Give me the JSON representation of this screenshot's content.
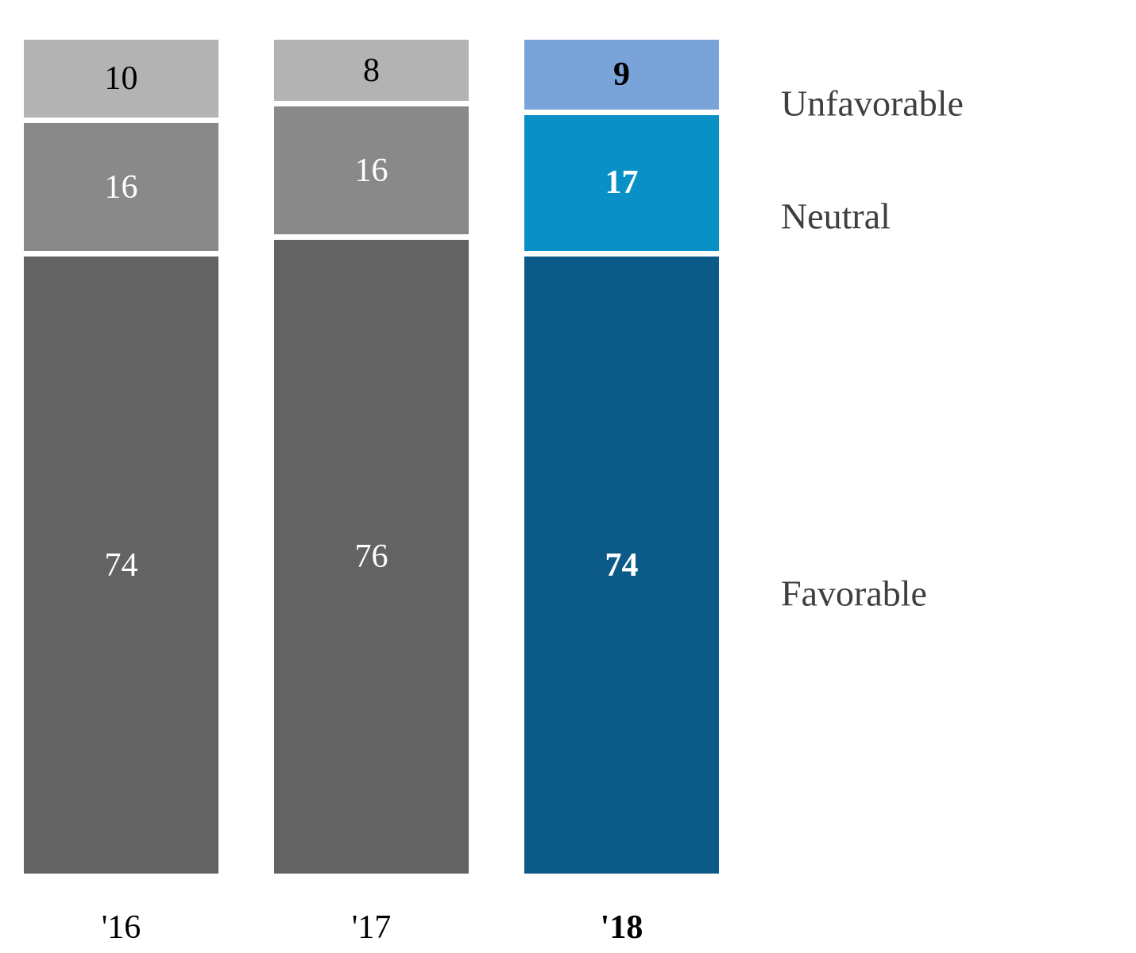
{
  "chart_data": {
    "type": "bar",
    "subtype": "100-percent-stacked-column",
    "categories": [
      "'16",
      "'17",
      "'18"
    ],
    "highlight_category": "'18",
    "segments_top_to_bottom": [
      "Unfavorable",
      "Neutral",
      "Favorable"
    ],
    "series": [
      {
        "name": "Unfavorable",
        "values": [
          10,
          8,
          9
        ]
      },
      {
        "name": "Neutral",
        "values": [
          16,
          16,
          17
        ]
      },
      {
        "name": "Favorable",
        "values": [
          74,
          76,
          74
        ]
      }
    ],
    "legend_labels": [
      "Unfavorable",
      "Neutral",
      "Favorable"
    ],
    "legend_position": "right",
    "data_labels_shown": true,
    "ylim": [
      0,
      100
    ],
    "grid": false,
    "axes_hidden": true,
    "colors": {
      "default": {
        "Unfavorable": "#B3B3B3",
        "Neutral": "#898989",
        "Favorable": "#636363"
      },
      "highlight": {
        "Unfavorable": "#7AA4D9",
        "Neutral": "#0991C7",
        "Favorable": "#0C5A88"
      }
    },
    "data_label_colors": {
      "Unfavorable": "#000000",
      "Neutral": "#FFFFFF",
      "Favorable": "#FFFFFF"
    },
    "category_label_color": "#000000",
    "legend_text_color": "#3F3F3F"
  }
}
